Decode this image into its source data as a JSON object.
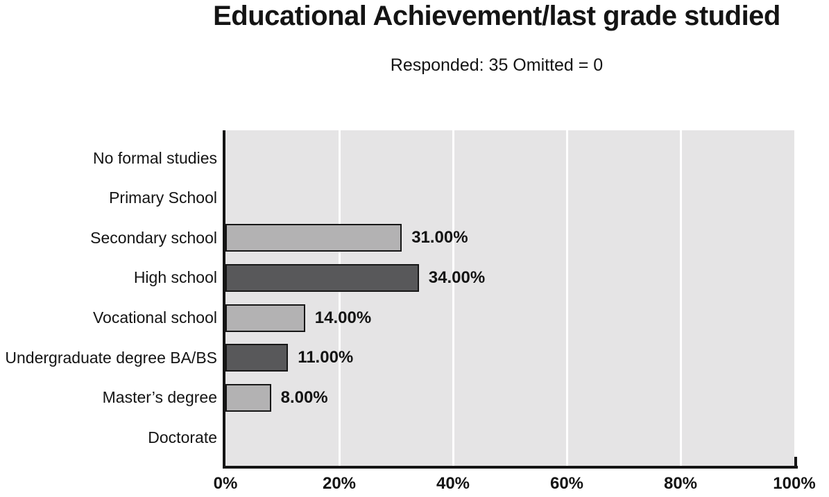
{
  "header": {
    "title": "Educational Achievement/last grade studied",
    "subtitle": "Responded: 35 Omitted = 0"
  },
  "chart_data": {
    "type": "bar",
    "orientation": "horizontal",
    "title": "Educational Achievement/last grade studied",
    "subtitle": "Responded: 35 Omitted = 0",
    "responded": 35,
    "omitted": 0,
    "categories": [
      "No formal studies",
      "Primary School",
      "Secondary school",
      "High school",
      "Vocational school",
      "Undergraduate degree BA/BS",
      "Master’s degree",
      "Doctorate"
    ],
    "values": [
      0,
      0,
      31,
      34,
      14,
      11,
      8,
      0
    ],
    "value_labels": [
      "",
      "",
      "31.00%",
      "34.00%",
      "14.00%",
      "11.00%",
      "8.00%",
      ""
    ],
    "xlabel": "",
    "ylabel": "",
    "xlim": [
      0,
      100
    ],
    "x_tick_labels": [
      "0%",
      "20%",
      "40%",
      "60%",
      "80%",
      "100%"
    ],
    "grid": "vertical gridlines at 20% steps",
    "legend": "none",
    "bar_color_pattern": [
      "light",
      "dark",
      "light",
      "dark",
      "light",
      "dark",
      "light",
      "dark"
    ],
    "colors": {
      "bar_light": "#b3b2b3",
      "bar_dark": "#58585a",
      "bar_border": "#161616",
      "plot_bg": "#e5e4e5",
      "gridline": "#ffffff",
      "axis": "#141414",
      "text": "#141414"
    }
  }
}
